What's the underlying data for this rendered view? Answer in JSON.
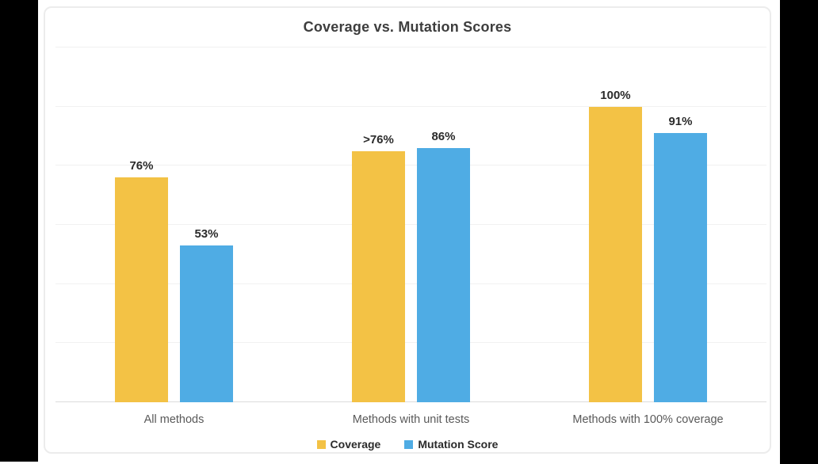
{
  "page": {
    "background_color": "#ffffff",
    "letterbox_color": "#000000",
    "panel_border_color": "#ececec"
  },
  "chart_data": {
    "type": "bar",
    "title": "Coverage vs. Mutation Scores",
    "categories": [
      "All methods",
      "Methods with unit tests",
      "Methods with 100% coverage"
    ],
    "series": [
      {
        "name": "Coverage",
        "color": "#F3C245",
        "labels": [
          "76%",
          ">76%",
          "100%"
        ],
        "values": [
          76,
          85,
          100
        ]
      },
      {
        "name": "Mutation Score",
        "color": "#4FACE4",
        "labels": [
          "53%",
          "86%",
          "91%"
        ],
        "values": [
          53,
          86,
          91
        ]
      }
    ],
    "ylim": [
      0,
      120
    ],
    "gridline_step": 20,
    "grid": true,
    "y_axis_labels_visible": false,
    "data_labels": true,
    "legend_position": "bottom",
    "title_color": "#3d3d3d",
    "data_label_color": "#2b2b2b",
    "category_label_color": "#595959",
    "gridline_color": "#f1f1f1",
    "axis_line_color": "#dcdcdc"
  }
}
